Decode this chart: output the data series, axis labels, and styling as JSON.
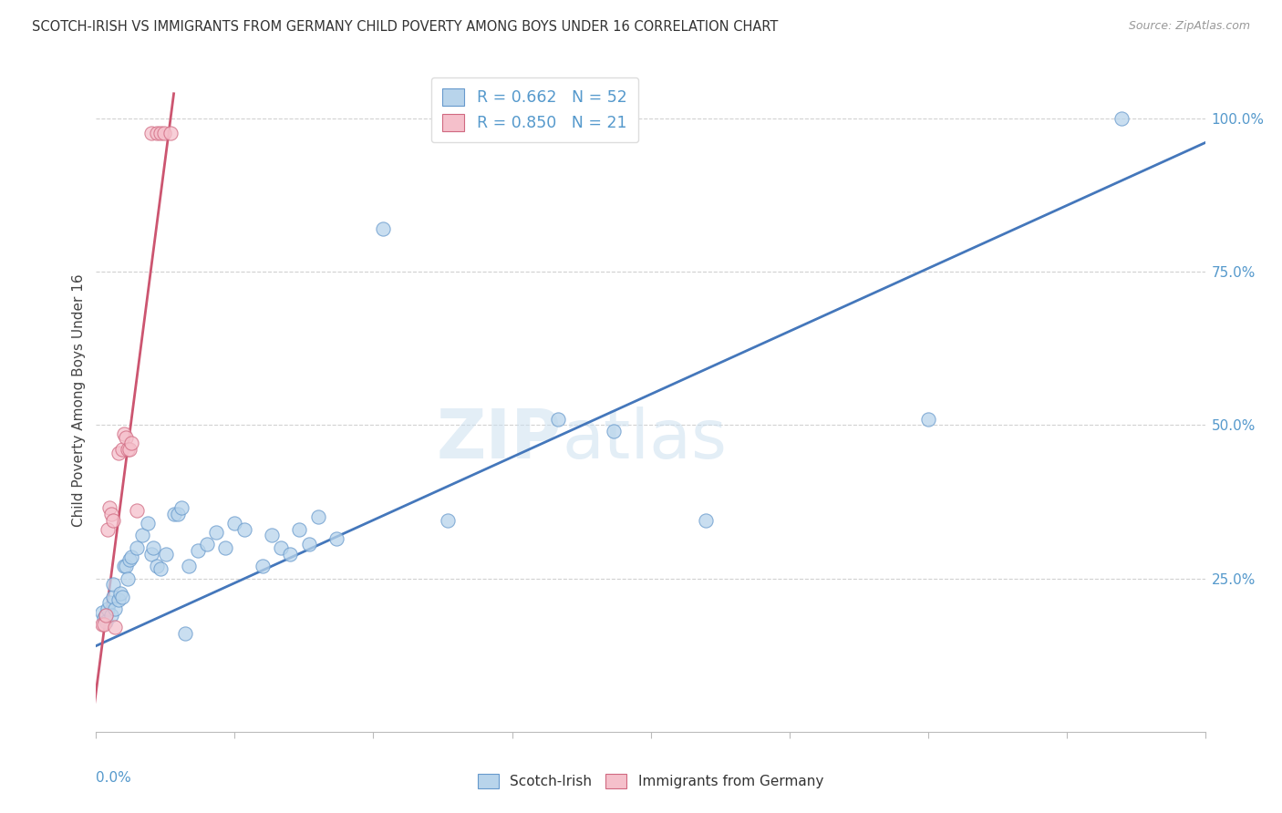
{
  "title": "SCOTCH-IRISH VS IMMIGRANTS FROM GERMANY CHILD POVERTY AMONG BOYS UNDER 16 CORRELATION CHART",
  "source": "Source: ZipAtlas.com",
  "ylabel": "Child Poverty Among Boys Under 16",
  "xlim": [
    0.0,
    0.6
  ],
  "ylim": [
    0.0,
    1.08
  ],
  "ytick_vals": [
    0.25,
    0.5,
    0.75,
    1.0
  ],
  "ytick_labels": [
    "25.0%",
    "50.0%",
    "75.0%",
    "100.0%"
  ],
  "watermark_zip": "ZIP",
  "watermark_atlas": "atlas",
  "legend1_labels": [
    "R = 0.662   N = 52",
    "R = 0.850   N = 21"
  ],
  "legend2_labels": [
    "Scotch-Irish",
    "Immigrants from Germany"
  ],
  "blue_color": "#b8d4eb",
  "blue_edge": "#6699cc",
  "pink_color": "#f5c0cb",
  "pink_edge": "#d06880",
  "blue_line": "#4477bb",
  "pink_line": "#cc5570",
  "axis_label_color": "#5599cc",
  "title_color": "#333333",
  "blue_scatter_x": [
    0.003,
    0.004,
    0.005,
    0.005,
    0.006,
    0.007,
    0.008,
    0.009,
    0.009,
    0.01,
    0.012,
    0.013,
    0.014,
    0.015,
    0.016,
    0.017,
    0.018,
    0.019,
    0.022,
    0.025,
    0.028,
    0.03,
    0.031,
    0.033,
    0.035,
    0.038,
    0.042,
    0.044,
    0.046,
    0.048,
    0.05,
    0.055,
    0.06,
    0.065,
    0.07,
    0.075,
    0.08,
    0.09,
    0.095,
    0.1,
    0.105,
    0.11,
    0.115,
    0.12,
    0.13,
    0.155,
    0.19,
    0.25,
    0.28,
    0.33,
    0.45,
    0.555
  ],
  "blue_scatter_y": [
    0.195,
    0.185,
    0.19,
    0.18,
    0.2,
    0.21,
    0.19,
    0.22,
    0.24,
    0.2,
    0.215,
    0.225,
    0.22,
    0.27,
    0.27,
    0.25,
    0.28,
    0.285,
    0.3,
    0.32,
    0.34,
    0.29,
    0.3,
    0.27,
    0.265,
    0.29,
    0.355,
    0.355,
    0.365,
    0.16,
    0.27,
    0.295,
    0.305,
    0.325,
    0.3,
    0.34,
    0.33,
    0.27,
    0.32,
    0.3,
    0.29,
    0.33,
    0.305,
    0.35,
    0.315,
    0.82,
    0.345,
    0.51,
    0.49,
    0.345,
    0.51,
    1.0
  ],
  "pink_scatter_x": [
    0.003,
    0.004,
    0.005,
    0.006,
    0.007,
    0.008,
    0.009,
    0.01,
    0.012,
    0.014,
    0.015,
    0.016,
    0.017,
    0.018,
    0.019,
    0.022,
    0.03,
    0.033,
    0.035,
    0.037,
    0.04
  ],
  "pink_scatter_y": [
    0.175,
    0.175,
    0.19,
    0.33,
    0.365,
    0.355,
    0.345,
    0.17,
    0.455,
    0.46,
    0.485,
    0.48,
    0.46,
    0.46,
    0.47,
    0.36,
    0.975,
    0.975,
    0.975,
    0.975,
    0.975
  ],
  "blue_trend_x": [
    0.0,
    0.6
  ],
  "blue_trend_y": [
    0.14,
    0.96
  ],
  "pink_trend_x": [
    -0.002,
    0.042
  ],
  "pink_trend_y": [
    0.02,
    1.04
  ]
}
